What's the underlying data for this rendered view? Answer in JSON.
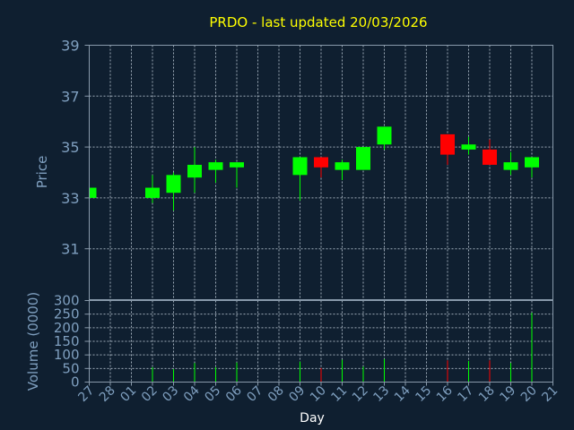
{
  "chart_data": {
    "type": "candlestick",
    "title": "PRDO - last updated 20/03/2026",
    "xlabel": "Day",
    "ylabel": "Price",
    "y2label": "Volume (0000)",
    "ylim": [
      29,
      39
    ],
    "yticks": [
      31,
      33,
      35,
      37,
      39
    ],
    "vol_ylim": [
      0,
      300
    ],
    "vol_yticks": [
      0,
      50,
      100,
      150,
      200,
      250,
      300
    ],
    "grid": true,
    "colors": {
      "up": "#00ff00",
      "down": "#ff0000",
      "title": "#ffff00",
      "axis": "#7f9fbf",
      "background": "#0f1f30"
    },
    "days": [
      "27",
      "28",
      "01",
      "02",
      "03",
      "04",
      "05",
      "06",
      "07",
      "08",
      "09",
      "10",
      "11",
      "12",
      "13",
      "14",
      "15",
      "16",
      "17",
      "18",
      "19",
      "20",
      "21"
    ],
    "candles": [
      {
        "day": "27",
        "open": 33.0,
        "high": 33.4,
        "low": 33.0,
        "close": 33.4,
        "volume": 0
      },
      {
        "day": "02",
        "open": 33.0,
        "high": 33.9,
        "low": 32.8,
        "close": 33.4,
        "volume": 55
      },
      {
        "day": "03",
        "open": 33.2,
        "high": 34.0,
        "low": 32.5,
        "close": 33.9,
        "volume": 48
      },
      {
        "day": "04",
        "open": 33.8,
        "high": 35.0,
        "low": 33.2,
        "close": 34.3,
        "volume": 70
      },
      {
        "day": "05",
        "open": 34.1,
        "high": 34.5,
        "low": 33.6,
        "close": 34.4,
        "volume": 55
      },
      {
        "day": "06",
        "open": 34.2,
        "high": 34.4,
        "low": 33.4,
        "close": 34.4,
        "volume": 72
      },
      {
        "day": "09",
        "open": 33.9,
        "high": 34.6,
        "low": 32.9,
        "close": 34.6,
        "volume": 75
      },
      {
        "day": "10",
        "open": 34.6,
        "high": 34.6,
        "low": 33.8,
        "close": 34.2,
        "volume": 52
      },
      {
        "day": "11",
        "open": 34.1,
        "high": 34.5,
        "low": 33.7,
        "close": 34.4,
        "volume": 82
      },
      {
        "day": "12",
        "open": 34.1,
        "high": 35.0,
        "low": 34.1,
        "close": 35.0,
        "volume": 57
      },
      {
        "day": "13",
        "open": 35.1,
        "high": 35.8,
        "low": 34.9,
        "close": 35.8,
        "volume": 85
      },
      {
        "day": "16",
        "open": 35.5,
        "high": 35.5,
        "low": 34.3,
        "close": 34.7,
        "volume": 80
      },
      {
        "day": "17",
        "open": 34.9,
        "high": 35.4,
        "low": 34.7,
        "close": 35.1,
        "volume": 78
      },
      {
        "day": "18",
        "open": 34.9,
        "high": 35.3,
        "low": 34.3,
        "close": 34.3,
        "volume": 80
      },
      {
        "day": "19",
        "open": 34.1,
        "high": 34.8,
        "low": 33.9,
        "close": 34.4,
        "volume": 70
      },
      {
        "day": "20",
        "open": 34.2,
        "high": 34.6,
        "low": 33.8,
        "close": 34.6,
        "volume": 255
      }
    ]
  }
}
